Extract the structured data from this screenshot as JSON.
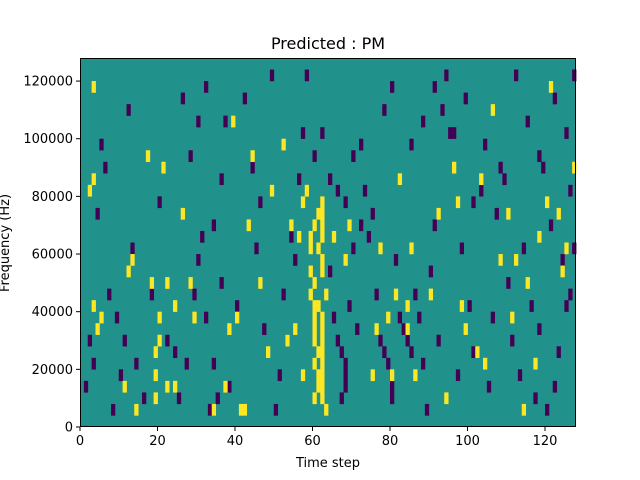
{
  "chart_data": {
    "type": "heatmap",
    "title": "Predicted : PM",
    "xlabel": "Time step",
    "ylabel": "Frequency (Hz)",
    "xlim": [
      0,
      128
    ],
    "ylim": [
      0,
      128000
    ],
    "xticks": [
      "0",
      "20",
      "40",
      "60",
      "80",
      "100",
      "120"
    ],
    "yticks": [
      "0",
      "20000",
      "40000",
      "60000",
      "80000",
      "100000",
      "120000"
    ],
    "grid": false,
    "colors": {
      "background": "#21918c",
      "high": "#fde725",
      "low": "#440154"
    },
    "value_scale": "0 = dark purple, 0.5 = teal, 1 = yellow",
    "high_cells": [
      [
        2,
        80000
      ],
      [
        3,
        116000
      ],
      [
        3,
        40000
      ],
      [
        4,
        32000
      ],
      [
        5,
        36000
      ],
      [
        3,
        84000
      ],
      [
        11,
        12000
      ],
      [
        12,
        52000
      ],
      [
        13,
        56000
      ],
      [
        14,
        4000
      ],
      [
        17,
        92000
      ],
      [
        19,
        8000
      ],
      [
        20,
        28000
      ],
      [
        21,
        88000
      ],
      [
        19,
        24000
      ],
      [
        19,
        16000
      ],
      [
        20,
        36000
      ],
      [
        22,
        48000
      ],
      [
        24,
        40000
      ],
      [
        26,
        72000
      ],
      [
        28,
        48000
      ],
      [
        24,
        12000
      ],
      [
        29,
        36000
      ],
      [
        34,
        4000
      ],
      [
        37,
        12000
      ],
      [
        38,
        32000
      ],
      [
        39,
        104000
      ],
      [
        43,
        68000
      ],
      [
        44,
        92000
      ],
      [
        52,
        96000
      ],
      [
        56,
        64000
      ],
      [
        57,
        76000
      ],
      [
        58,
        80000
      ],
      [
        59,
        60000
      ],
      [
        59,
        52000
      ],
      [
        60,
        48000
      ],
      [
        59,
        44000
      ],
      [
        60,
        40000
      ],
      [
        60,
        36000
      ],
      [
        60,
        32000
      ],
      [
        60,
        28000
      ],
      [
        61,
        24000
      ],
      [
        60,
        20000
      ],
      [
        61,
        16000
      ],
      [
        61,
        12000
      ],
      [
        60,
        8000
      ],
      [
        62,
        76000
      ],
      [
        62,
        72000
      ],
      [
        62,
        68000
      ],
      [
        62,
        64000
      ],
      [
        61,
        60000
      ],
      [
        62,
        56000
      ],
      [
        62,
        52000
      ],
      [
        61,
        40000
      ],
      [
        62,
        36000
      ],
      [
        62,
        32000
      ],
      [
        62,
        28000
      ],
      [
        62,
        24000
      ],
      [
        62,
        20000
      ],
      [
        62,
        16000
      ],
      [
        62,
        12000
      ],
      [
        62,
        8000
      ],
      [
        63,
        44000
      ],
      [
        63,
        4000
      ],
      [
        65,
        64000
      ],
      [
        68,
        56000
      ],
      [
        69,
        68000
      ],
      [
        75,
        16000
      ],
      [
        76,
        32000
      ],
      [
        77,
        60000
      ],
      [
        80,
        16000
      ],
      [
        82,
        84000
      ],
      [
        84,
        32000
      ],
      [
        85,
        60000
      ],
      [
        86,
        16000
      ],
      [
        90,
        44000
      ],
      [
        92,
        72000
      ],
      [
        94,
        8000
      ],
      [
        97,
        76000
      ],
      [
        98,
        40000
      ],
      [
        99,
        32000
      ],
      [
        102,
        24000
      ],
      [
        104,
        20000
      ],
      [
        106,
        108000
      ],
      [
        110,
        72000
      ],
      [
        112,
        56000
      ],
      [
        115,
        48000
      ],
      [
        117,
        20000
      ],
      [
        120,
        76000
      ],
      [
        121,
        116000
      ],
      [
        123,
        72000
      ],
      [
        124,
        52000
      ],
      [
        125,
        60000
      ],
      [
        127,
        88000
      ],
      [
        22,
        12000
      ],
      [
        18,
        48000
      ],
      [
        84,
        40000
      ],
      [
        40,
        36000
      ],
      [
        53,
        28000
      ],
      [
        48,
        24000
      ],
      [
        55,
        32000
      ],
      [
        57,
        16000
      ],
      [
        59,
        64000
      ],
      [
        60,
        68000
      ],
      [
        61,
        72000
      ],
      [
        46,
        48000
      ],
      [
        41,
        4000
      ],
      [
        42,
        4000
      ],
      [
        49,
        80000
      ],
      [
        54,
        68000
      ],
      [
        79,
        36000
      ],
      [
        81,
        44000
      ],
      [
        96,
        88000
      ],
      [
        103,
        84000
      ],
      [
        108,
        56000
      ],
      [
        111,
        36000
      ],
      [
        114,
        4000
      ],
      [
        118,
        64000
      ]
    ],
    "low_cells": [
      [
        8,
        4000
      ],
      [
        9,
        36000
      ],
      [
        11,
        28000
      ],
      [
        12,
        108000
      ],
      [
        13,
        60000
      ],
      [
        14,
        20000
      ],
      [
        16,
        8000
      ],
      [
        18,
        44000
      ],
      [
        20,
        76000
      ],
      [
        22,
        28000
      ],
      [
        24,
        24000
      ],
      [
        25,
        8000
      ],
      [
        27,
        20000
      ],
      [
        29,
        44000
      ],
      [
        30,
        56000
      ],
      [
        31,
        64000
      ],
      [
        32,
        36000
      ],
      [
        33,
        4000
      ],
      [
        34,
        20000
      ],
      [
        35,
        8000
      ],
      [
        36,
        48000
      ],
      [
        37,
        104000
      ],
      [
        38,
        12000
      ],
      [
        40,
        40000
      ],
      [
        42,
        112000
      ],
      [
        44,
        88000
      ],
      [
        45,
        60000
      ],
      [
        46,
        76000
      ],
      [
        47,
        32000
      ],
      [
        49,
        120000
      ],
      [
        50,
        4000
      ],
      [
        51,
        16000
      ],
      [
        52,
        44000
      ],
      [
        53,
        28000
      ],
      [
        54,
        64000
      ],
      [
        55,
        56000
      ],
      [
        56,
        84000
      ],
      [
        57,
        100000
      ],
      [
        58,
        120000
      ],
      [
        64,
        52000
      ],
      [
        65,
        36000
      ],
      [
        66,
        28000
      ],
      [
        67,
        24000
      ],
      [
        68,
        20000
      ],
      [
        68,
        16000
      ],
      [
        68,
        12000
      ],
      [
        67,
        8000
      ],
      [
        69,
        40000
      ],
      [
        70,
        60000
      ],
      [
        71,
        32000
      ],
      [
        72,
        96000
      ],
      [
        73,
        80000
      ],
      [
        74,
        64000
      ],
      [
        76,
        44000
      ],
      [
        77,
        28000
      ],
      [
        78,
        24000
      ],
      [
        79,
        20000
      ],
      [
        80,
        12000
      ],
      [
        80,
        8000
      ],
      [
        81,
        56000
      ],
      [
        82,
        36000
      ],
      [
        83,
        32000
      ],
      [
        84,
        28000
      ],
      [
        85,
        24000
      ],
      [
        86,
        44000
      ],
      [
        87,
        36000
      ],
      [
        88,
        20000
      ],
      [
        89,
        4000
      ],
      [
        90,
        52000
      ],
      [
        91,
        68000
      ],
      [
        92,
        28000
      ],
      [
        94,
        120000
      ],
      [
        96,
        100000
      ],
      [
        97,
        16000
      ],
      [
        98,
        60000
      ],
      [
        100,
        40000
      ],
      [
        101,
        24000
      ],
      [
        103,
        80000
      ],
      [
        105,
        12000
      ],
      [
        106,
        36000
      ],
      [
        107,
        72000
      ],
      [
        109,
        84000
      ],
      [
        110,
        48000
      ],
      [
        111,
        28000
      ],
      [
        113,
        16000
      ],
      [
        114,
        60000
      ],
      [
        116,
        40000
      ],
      [
        117,
        8000
      ],
      [
        118,
        32000
      ],
      [
        119,
        88000
      ],
      [
        120,
        4000
      ],
      [
        121,
        68000
      ],
      [
        122,
        12000
      ],
      [
        123,
        24000
      ],
      [
        124,
        56000
      ],
      [
        125,
        40000
      ],
      [
        126,
        44000
      ],
      [
        127,
        60000
      ],
      [
        127,
        120000
      ],
      [
        10,
        16000
      ],
      [
        7,
        44000
      ],
      [
        5,
        96000
      ],
      [
        6,
        88000
      ],
      [
        4,
        72000
      ],
      [
        26,
        112000
      ],
      [
        28,
        92000
      ],
      [
        30,
        104000
      ],
      [
        32,
        116000
      ],
      [
        34,
        68000
      ],
      [
        36,
        84000
      ],
      [
        60,
        92000
      ],
      [
        62,
        100000
      ],
      [
        64,
        84000
      ],
      [
        66,
        80000
      ],
      [
        68,
        76000
      ],
      [
        70,
        92000
      ],
      [
        72,
        68000
      ],
      [
        75,
        72000
      ],
      [
        78,
        108000
      ],
      [
        80,
        116000
      ],
      [
        85,
        96000
      ],
      [
        88,
        104000
      ],
      [
        91,
        116000
      ],
      [
        93,
        108000
      ],
      [
        95,
        100000
      ],
      [
        99,
        112000
      ],
      [
        101,
        76000
      ],
      [
        104,
        96000
      ],
      [
        108,
        88000
      ],
      [
        112,
        120000
      ],
      [
        115,
        104000
      ],
      [
        118,
        92000
      ],
      [
        122,
        112000
      ],
      [
        125,
        100000
      ],
      [
        126,
        80000
      ],
      [
        2,
        28000
      ],
      [
        3,
        20000
      ],
      [
        1,
        12000
      ]
    ]
  }
}
